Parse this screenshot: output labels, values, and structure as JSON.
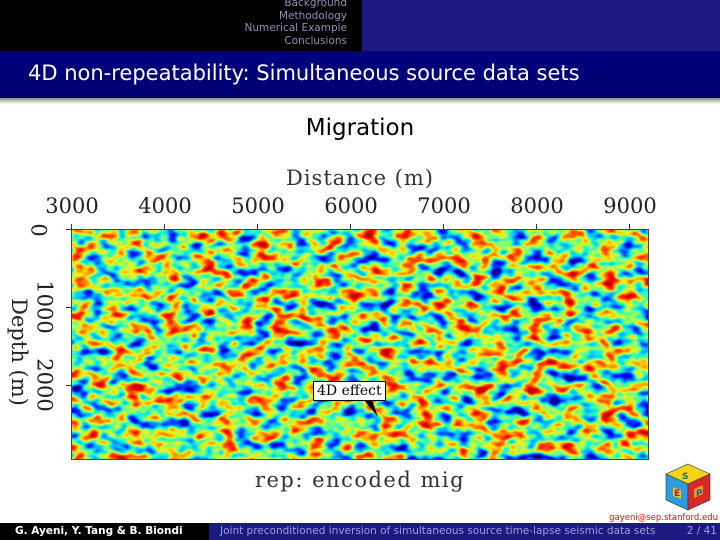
{
  "nav": {
    "sections": [
      "Background",
      "Methodology",
      "Numerical Example",
      "Conclusions"
    ]
  },
  "slide": {
    "title": "4D non-repeatability: Simultaneous source data sets",
    "heading": "Migration"
  },
  "figure": {
    "xlabel": "Distance (m)",
    "xticks": [
      "3000",
      "4000",
      "5000",
      "6000",
      "7000",
      "8000",
      "9000"
    ],
    "ylabel": "Depth (m)",
    "yticks": [
      "0",
      "1000",
      "2000"
    ],
    "annotation": "4D effect",
    "caption": "rep: encoded mig",
    "colormap": "jet"
  },
  "footer": {
    "authors": "G. Ayeni, Y. Tang & B. Biondi",
    "talk_title": "Joint preconditioned inversion of simultaneous source time-lapse seismic data sets",
    "page": "2 / 41",
    "email": "gayeni@sep.stanford.edu"
  },
  "icons": {
    "logo": "sep-rubiks-cube-logo-icon"
  }
}
